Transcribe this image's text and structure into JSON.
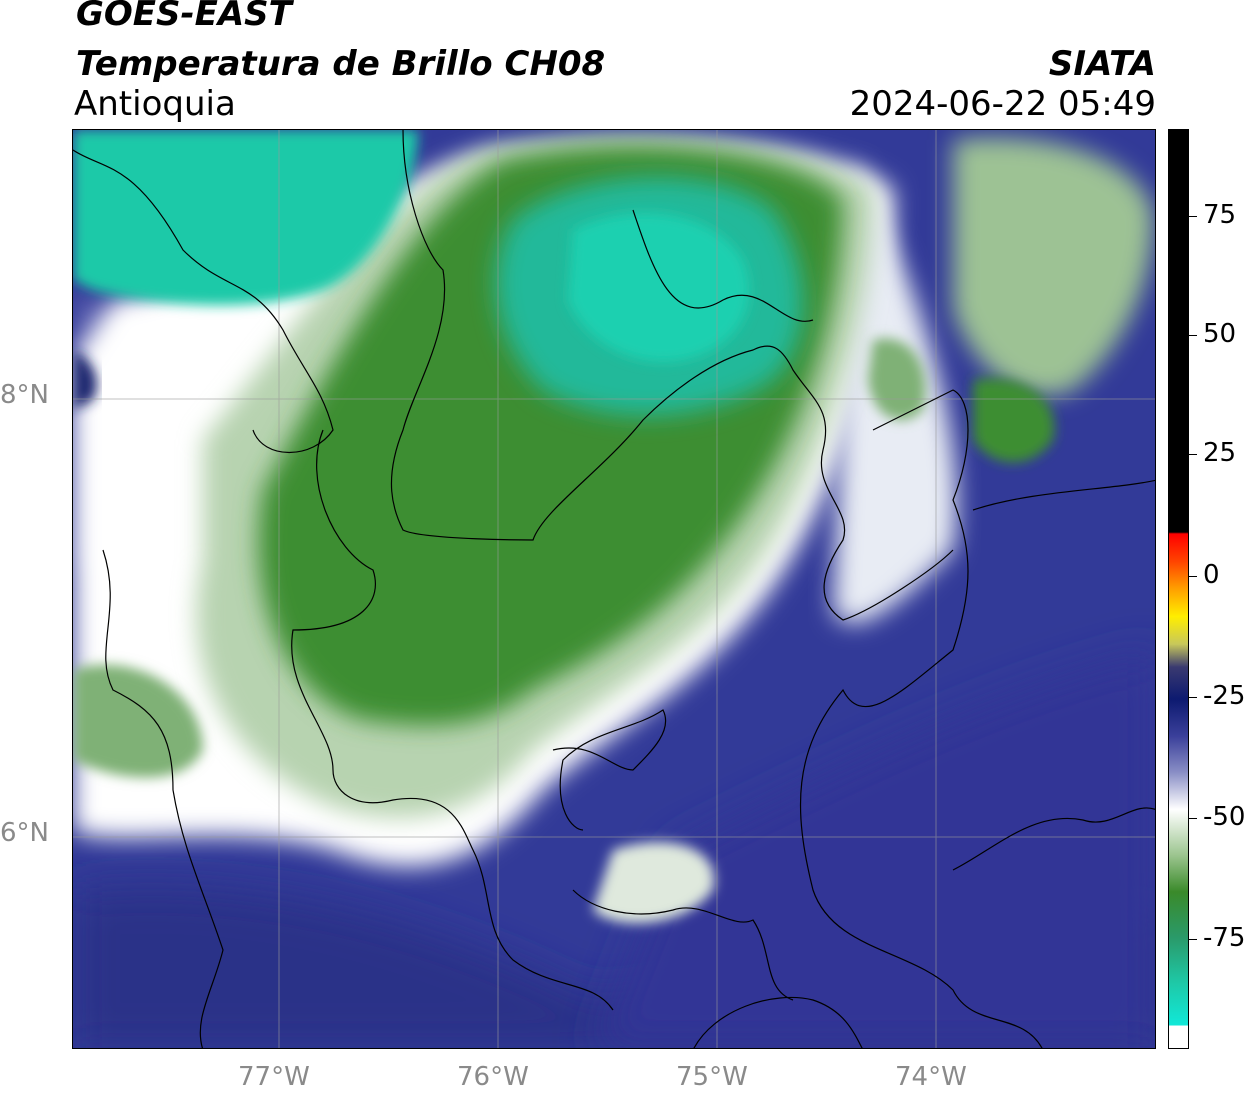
{
  "header": {
    "satellite": "GOES-EAST",
    "product": "Temperatura de Brillo CH08",
    "region": "Antioquia",
    "organization": "SIATA",
    "timestamp": "2024-06-22 05:49"
  },
  "map": {
    "lat_ticks": [
      "8°N",
      "6°N"
    ],
    "lon_ticks": [
      "77°W",
      "76°W",
      "75°W",
      "74°W"
    ]
  },
  "colorbar": {
    "ticks": [
      "75",
      "50",
      "25",
      "0",
      "-25",
      "-50",
      "-75"
    ]
  },
  "colors": {
    "cold_cyan": "#1ed0b0",
    "green": "#3a8a2a",
    "white": "#ffffff",
    "blue": "#2e3591",
    "dark_navy": "#0d1a70",
    "red": "#ff0000",
    "yellow": "#ffff00",
    "black": "#000000"
  }
}
